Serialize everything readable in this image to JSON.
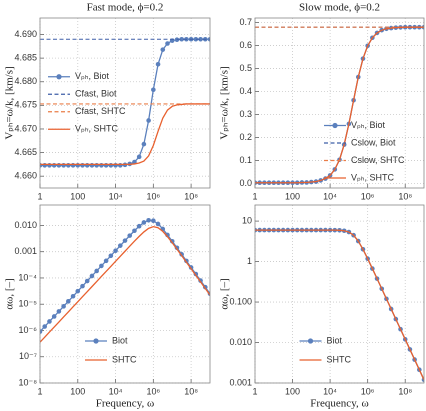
{
  "chart_data": [
    {
      "type": "line",
      "title": "Fast mode, ϕ=0.2",
      "y_label": "Vₚₕ=ω/k, [km/s]",
      "xscale": "log",
      "grid": true,
      "legend_loc": "center left",
      "xlim": [
        1,
        1000000000
      ],
      "xticks": [
        1,
        100,
        {
          "value": 10000,
          "label": "10⁴"
        },
        {
          "value": 1000000,
          "label": "10⁶"
        },
        {
          "value": 100000000,
          "label": "10⁸"
        }
      ],
      "ylim": [
        4.6575,
        4.6935
      ],
      "yticks": [
        {
          "value": 4.66,
          "label": "4.660"
        },
        {
          "value": 4.665,
          "label": "4.665"
        },
        {
          "value": 4.67,
          "label": "4.670"
        },
        {
          "value": 4.675,
          "label": "4.675"
        },
        {
          "value": 4.68,
          "label": "4.680"
        },
        {
          "value": 4.685,
          "label": "4.685"
        },
        {
          "value": 4.69,
          "label": "4.690"
        }
      ],
      "x": [
        1,
        1.778,
        3.162,
        5.623,
        10,
        17.78,
        31.62,
        56.23,
        100,
        177.8,
        316.2,
        562.3,
        1000,
        1778,
        3162,
        5623,
        10000,
        17783,
        31623,
        56234,
        100000,
        177828,
        316228,
        562341,
        1000000,
        1778279,
        3162278,
        5623413,
        10000000,
        17782794,
        31622777,
        56234133,
        100000000,
        177827941,
        316227766,
        562341325,
        1000000000
      ],
      "series": [
        {
          "name": "Vₚₕ, Biot",
          "style": "markers-line",
          "color": "#5b80bd",
          "values": [
            4.6623,
            4.6623,
            4.6623,
            4.6623,
            4.6623,
            4.6623,
            4.6623,
            4.6623,
            4.6623,
            4.6623,
            4.6623,
            4.6623,
            4.6623,
            4.6623,
            4.6623,
            4.6623,
            4.6623,
            4.6623,
            4.6624,
            4.6626,
            4.663,
            4.6641,
            4.6668,
            4.6718,
            4.6783,
            4.6837,
            4.6868,
            4.6881,
            4.6887,
            4.6889,
            4.689,
            4.689,
            4.689,
            4.689,
            4.689,
            4.689,
            4.689
          ]
        },
        {
          "name": "Cfast, Biot",
          "style": "dashed",
          "color": "#3f5fa8",
          "x": [
            1,
            1000000000
          ],
          "values": [
            4.689,
            4.689
          ]
        },
        {
          "name": "Cfast, SHTC",
          "style": "dashed",
          "color": "#ea7d48",
          "x": [
            1,
            1000000000
          ],
          "values": [
            4.6753,
            4.6753
          ]
        },
        {
          "name": "Vₚₕ, SHTC",
          "style": "line",
          "color": "#e8612f",
          "values": [
            4.6625,
            4.6625,
            4.6625,
            4.6625,
            4.6625,
            4.6625,
            4.6625,
            4.6625,
            4.6625,
            4.6625,
            4.6625,
            4.6625,
            4.6625,
            4.6625,
            4.6625,
            4.6625,
            4.6625,
            4.6625,
            4.6625,
            4.6625,
            4.6626,
            4.6628,
            4.6632,
            4.6643,
            4.6665,
            4.6695,
            4.6723,
            4.674,
            4.6748,
            4.6751,
            4.6752,
            4.6753,
            4.6753,
            4.6753,
            4.6753,
            4.6753,
            4.6753
          ]
        }
      ]
    },
    {
      "type": "line",
      "title": "Slow mode, ϕ=0.2",
      "y_label": "Vₚₕ=ω/k, [km/s]",
      "xscale": "log",
      "grid": true,
      "legend_loc": "lower right",
      "xlim": [
        1,
        1000000000
      ],
      "xticks": [
        1,
        100,
        {
          "value": 10000,
          "label": "10⁴"
        },
        {
          "value": 1000000,
          "label": "10⁶"
        },
        {
          "value": 100000000,
          "label": "10⁸"
        }
      ],
      "ylim": [
        -0.02,
        0.72
      ],
      "yticks": [
        {
          "value": 0,
          "label": "0.0"
        },
        0.1,
        0.2,
        0.3,
        0.4,
        0.5,
        0.6,
        0.7
      ],
      "x": [
        1,
        1.778,
        3.162,
        5.623,
        10,
        17.78,
        31.62,
        56.23,
        100,
        177.8,
        316.2,
        562.3,
        1000,
        1778,
        3162,
        5623,
        10000,
        17783,
        31623,
        56234,
        100000,
        177828,
        316228,
        562341,
        1000000,
        1778279,
        3162278,
        5623413,
        10000000,
        17782794,
        31622777,
        56234133,
        100000000,
        177827941,
        316227766,
        562341325,
        1000000000
      ],
      "series": [
        {
          "name": "Vₚₕ, Biot",
          "style": "markers-line",
          "color": "#5b80bd",
          "values": [
            0.003,
            0.003,
            0.003,
            0.003,
            0.003,
            0.003,
            0.003,
            0.003,
            0.003,
            0.003,
            0.004,
            0.004,
            0.006,
            0.008,
            0.013,
            0.021,
            0.035,
            0.061,
            0.103,
            0.169,
            0.259,
            0.362,
            0.463,
            0.543,
            0.599,
            0.634,
            0.655,
            0.667,
            0.673,
            0.676,
            0.678,
            0.679,
            0.68,
            0.68,
            0.68,
            0.68,
            0.68
          ]
        },
        {
          "name": "Cslow, Biot",
          "style": "dashed",
          "color": "#3f5fa8",
          "x": [
            1,
            1000000000
          ],
          "values": [
            0.68,
            0.68
          ]
        },
        {
          "name": "Cslow, SHTC",
          "style": "dashed",
          "color": "#ea7d48",
          "x": [
            1,
            1000000000
          ],
          "values": [
            0.68,
            0.68
          ]
        },
        {
          "name": "Vₚₕ, SHTC",
          "style": "line",
          "color": "#e8612f",
          "values": [
            0.003,
            0.003,
            0.003,
            0.003,
            0.003,
            0.003,
            0.003,
            0.003,
            0.003,
            0.003,
            0.004,
            0.004,
            0.006,
            0.008,
            0.013,
            0.021,
            0.035,
            0.061,
            0.103,
            0.169,
            0.259,
            0.362,
            0.463,
            0.543,
            0.599,
            0.634,
            0.655,
            0.667,
            0.673,
            0.676,
            0.678,
            0.679,
            0.68,
            0.68,
            0.68,
            0.68,
            0.68
          ]
        }
      ]
    },
    {
      "type": "line",
      "y_label": "αω, [–]",
      "x_label": "Frequency, ω",
      "xscale": "log",
      "yscale": "log",
      "grid": true,
      "legend_loc": "lower center",
      "xlim": [
        1,
        1000000000
      ],
      "xticks": [
        1,
        100,
        {
          "value": 10000,
          "label": "10⁴"
        },
        {
          "value": 1000000,
          "label": "10⁶"
        },
        {
          "value": 100000000,
          "label": "10⁸"
        }
      ],
      "ylim": [
        1e-08,
        0.06
      ],
      "yticks": [
        {
          "value": 0.01,
          "label": "0.010"
        },
        0.001,
        {
          "value": 0.0001,
          "label": "10⁻⁴"
        },
        {
          "value": 1e-05,
          "label": "10⁻⁵"
        },
        {
          "value": 1e-06,
          "label": "10⁻⁶"
        },
        {
          "value": 1e-07,
          "label": "10⁻⁷"
        },
        {
          "value": 1e-08,
          "label": "10⁻⁸"
        }
      ],
      "x": [
        1,
        1.778,
        3.162,
        5.623,
        10,
        17.78,
        31.62,
        56.23,
        100,
        177.8,
        316.2,
        562.3,
        1000,
        1778,
        3162,
        5623,
        10000,
        17783,
        31623,
        56234,
        100000,
        177828,
        316228,
        562341,
        1000000,
        1778279,
        3162278,
        5623413,
        10000000,
        17782794,
        31622777,
        56234133,
        100000000,
        177827941,
        316227766,
        562341325,
        1000000000
      ],
      "series": [
        {
          "name": "Biot",
          "style": "markers-line",
          "color": "#5b80bd",
          "values": [
            9.06e-07,
            1.41e-06,
            2.2e-06,
            3.42e-06,
            5.33e-06,
            8.3e-06,
            1.29e-05,
            2.01e-05,
            3.14e-05,
            4.89e-05,
            7.62e-05,
            0.000119,
            0.000185,
            0.000288,
            0.000449,
            0.000699,
            0.00109,
            0.0017,
            0.00264,
            0.00409,
            0.00627,
            0.00935,
            0.013,
            0.0157,
            0.0151,
            0.0114,
            0.00733,
            0.00434,
            0.00249,
            0.00141,
            0.000794,
            0.000447,
            0.000251,
            0.000141,
            7.94e-05,
            4.47e-05,
            2.51e-05
          ]
        },
        {
          "name": "SHTC",
          "style": "line",
          "color": "#e8612f",
          "values": [
            3.57e-07,
            5.57e-07,
            8.67e-07,
            1.35e-06,
            2.1e-06,
            3.27e-06,
            5.1e-06,
            7.94e-06,
            1.24e-05,
            1.93e-05,
            3.01e-05,
            4.68e-05,
            7.29e-05,
            0.000114,
            0.000177,
            0.000275,
            0.00043,
            0.000668,
            0.00104,
            0.00162,
            0.00251,
            0.00383,
            0.00566,
            0.00773,
            0.00897,
            0.00818,
            0.00593,
            0.00372,
            0.00219,
            0.00125,
            0.000708,
            0.000398,
            0.000224,
            0.000126,
            7.08e-05,
            3.98e-05,
            2.24e-05
          ]
        }
      ]
    },
    {
      "type": "line",
      "y_label": "αω, [–]",
      "x_label": "Frequency, ω",
      "xscale": "log",
      "yscale": "log",
      "grid": true,
      "legend_loc": "lower center",
      "xlim": [
        1,
        1000000000
      ],
      "xticks": [
        1,
        100,
        {
          "value": 10000,
          "label": "10⁴"
        },
        {
          "value": 1000000,
          "label": "10⁶"
        },
        {
          "value": 100000000,
          "label": "10⁸"
        }
      ],
      "ylim": [
        0.001,
        25
      ],
      "yticks": [
        0.001,
        {
          "value": 0.01,
          "label": "0.010"
        },
        {
          "value": 0.1,
          "label": "0.100"
        },
        1,
        10
      ],
      "x": [
        1,
        1.778,
        3.162,
        5.623,
        10,
        17.78,
        31.62,
        56.23,
        100,
        177.8,
        316.2,
        562.3,
        1000,
        1778,
        3162,
        5623,
        10000,
        17783,
        31623,
        56234,
        100000,
        177828,
        316228,
        562341,
        1000000,
        1778279,
        3162278,
        5623413,
        10000000,
        17782794,
        31622777,
        56234133,
        100000000,
        177827941,
        316227766,
        562341325,
        1000000000
      ],
      "series": [
        {
          "name": "Biot",
          "style": "markers-line",
          "color": "#5b80bd",
          "values": [
            6,
            6,
            6,
            6,
            6,
            6,
            6,
            6,
            6,
            6,
            6,
            6,
            6,
            6,
            6,
            5.998,
            5.993,
            5.976,
            5.926,
            5.776,
            5.367,
            4.485,
            3.207,
            2.01,
            1.177,
            0.671,
            0.379,
            0.213,
            0.12,
            0.0675,
            0.0379,
            0.0213,
            0.012,
            0.00675,
            0.00379,
            0.00213,
            0.0012
          ]
        },
        {
          "name": "SHTC",
          "style": "line",
          "color": "#e8612f",
          "values": [
            6,
            6,
            6,
            6,
            6,
            6,
            6,
            6,
            6,
            6,
            6,
            6,
            6,
            6,
            6,
            5.998,
            5.993,
            5.976,
            5.926,
            5.776,
            5.367,
            4.485,
            3.207,
            2.01,
            1.177,
            0.671,
            0.379,
            0.213,
            0.12,
            0.0675,
            0.0379,
            0.0213,
            0.012,
            0.00675,
            0.00379,
            0.00213,
            0.0012
          ]
        }
      ]
    }
  ]
}
